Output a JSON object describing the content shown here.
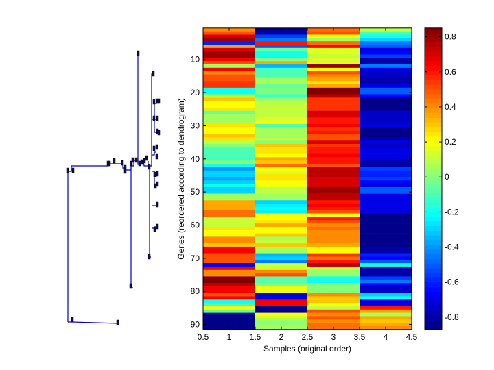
{
  "chart_data": {
    "type": "heatmap",
    "title": "",
    "xlabel": "Samples (original order)",
    "ylabel": "Genes (reordered according to dendrogram)",
    "colormap": "jet",
    "x": [
      1,
      2,
      3,
      4
    ],
    "xlim": [
      0.5,
      4.5
    ],
    "ylim": [
      0.5,
      91.5
    ],
    "y_reversed": true,
    "xticks": [
      "0.5",
      "1",
      "1.5",
      "2",
      "2.5",
      "3",
      "3.5",
      "4",
      "4.5"
    ],
    "yticks": [
      "10",
      "20",
      "30",
      "40",
      "50",
      "60",
      "70",
      "80",
      "90"
    ],
    "colorbar": {
      "range": [
        -0.87,
        0.85
      ],
      "ticks": [
        "0.8",
        "0.6",
        "0.4",
        "0.2",
        "0",
        "-0.2",
        "-0.4",
        "-0.6",
        "-0.8"
      ],
      "placement": "right"
    },
    "dendrogram": {
      "placement": "left",
      "leaves": 91
    },
    "values": [
      [
        0.4,
        -0.85,
        0.45,
        0.1
      ],
      [
        0.5,
        -0.8,
        0.5,
        -0.1
      ],
      [
        0.7,
        -0.55,
        0.2,
        -0.2
      ],
      [
        0.8,
        -0.45,
        0.05,
        -0.3
      ],
      [
        -0.6,
        0.6,
        0.45,
        -0.45
      ],
      [
        0.35,
        -0.5,
        0.65,
        -0.5
      ],
      [
        0.7,
        -0.05,
        0.15,
        -0.7
      ],
      [
        0.8,
        -0.2,
        0.15,
        -0.65
      ],
      [
        0.8,
        -0.2,
        0.1,
        -0.55
      ],
      [
        0.65,
        0.0,
        0.15,
        -0.8
      ],
      [
        0.5,
        0.35,
        0.15,
        -0.8
      ],
      [
        0.05,
        -0.35,
        0.8,
        -0.45
      ],
      [
        0.65,
        -0.1,
        0.2,
        -0.7
      ],
      [
        0.4,
        -0.1,
        0.5,
        -0.75
      ],
      [
        0.5,
        -0.1,
        0.4,
        -0.75
      ],
      [
        0.5,
        0.05,
        0.35,
        -0.8
      ],
      [
        0.55,
        0.05,
        0.25,
        -0.8
      ],
      [
        0.55,
        -0.05,
        0.35,
        -0.7
      ],
      [
        -0.2,
        -0.02,
        0.85,
        -0.5
      ],
      [
        -0.2,
        -0.02,
        0.85,
        -0.5
      ],
      [
        0.1,
        -0.12,
        0.75,
        -0.65
      ],
      [
        0.3,
        0.02,
        0.55,
        -0.85
      ],
      [
        0.2,
        0.1,
        0.55,
        -0.85
      ],
      [
        0.2,
        0.1,
        0.55,
        -0.85
      ],
      [
        0.25,
        0.1,
        0.55,
        -0.85
      ],
      [
        -0.05,
        0.1,
        0.7,
        -0.75
      ],
      [
        0.05,
        0.1,
        0.7,
        -0.75
      ],
      [
        0.05,
        0.15,
        0.6,
        -0.75
      ],
      [
        0.05,
        0.18,
        0.6,
        -0.75
      ],
      [
        0.25,
        -0.1,
        0.65,
        -0.7
      ],
      [
        0.2,
        0.05,
        0.55,
        -0.85
      ],
      [
        0.2,
        0.05,
        0.6,
        -0.85
      ],
      [
        0.3,
        0.05,
        0.5,
        -0.85
      ],
      [
        0.25,
        0.1,
        0.5,
        -0.8
      ],
      [
        0.1,
        0.0,
        0.7,
        -0.7
      ],
      [
        0.0,
        0.3,
        0.55,
        -0.75
      ],
      [
        -0.1,
        0.25,
        0.6,
        -0.7
      ],
      [
        -0.1,
        0.25,
        0.6,
        -0.7
      ],
      [
        -0.1,
        0.2,
        0.65,
        -0.7
      ],
      [
        -0.12,
        0.35,
        0.6,
        -0.7
      ],
      [
        0.0,
        0.3,
        0.6,
        -0.8
      ],
      [
        -0.2,
        0.45,
        0.5,
        -0.8
      ],
      [
        -0.4,
        0.2,
        0.75,
        -0.55
      ],
      [
        -0.3,
        0.15,
        0.75,
        -0.6
      ],
      [
        -0.3,
        0.25,
        0.75,
        -0.6
      ],
      [
        -0.38,
        0.25,
        0.7,
        -0.55
      ],
      [
        -0.3,
        0.2,
        0.7,
        -0.65
      ],
      [
        -0.2,
        0.2,
        0.7,
        -0.7
      ],
      [
        -0.3,
        0.08,
        0.8,
        -0.5
      ],
      [
        -0.3,
        0.1,
        0.8,
        -0.5
      ],
      [
        0.05,
        0.05,
        0.75,
        -0.7
      ],
      [
        0.05,
        0.05,
        0.75,
        -0.7
      ],
      [
        0.35,
        -0.3,
        0.6,
        -0.7
      ],
      [
        0.35,
        -0.25,
        0.65,
        -0.7
      ],
      [
        0.35,
        -0.2,
        0.6,
        -0.7
      ],
      [
        0.45,
        -0.25,
        0.5,
        -0.7
      ],
      [
        0.45,
        0.2,
        0.2,
        -0.85
      ],
      [
        0.1,
        0.2,
        0.6,
        -0.85
      ],
      [
        0.12,
        0.25,
        0.5,
        -0.85
      ],
      [
        0.1,
        0.35,
        0.4,
        -0.85
      ],
      [
        0.25,
        0.2,
        0.45,
        -0.85
      ],
      [
        0.2,
        0.2,
        0.4,
        -0.85
      ],
      [
        0.2,
        0.3,
        0.4,
        -0.85
      ],
      [
        0.4,
        0.05,
        0.4,
        -0.85
      ],
      [
        0.4,
        0.1,
        0.4,
        -0.85
      ],
      [
        0.3,
        0.3,
        0.35,
        -0.85
      ],
      [
        0.65,
        0.05,
        0.2,
        -0.8
      ],
      [
        0.65,
        0.05,
        0.2,
        -0.8
      ],
      [
        0.5,
        -0.35,
        0.55,
        -0.6
      ],
      [
        0.5,
        -0.3,
        0.45,
        -0.65
      ],
      [
        0.5,
        -0.45,
        0.6,
        -0.5
      ],
      [
        -0.65,
        0.12,
        0.75,
        -0.2
      ],
      [
        0.65,
        0.12,
        0.1,
        -0.8
      ],
      [
        0.4,
        0.4,
        0.03,
        -0.8
      ],
      [
        0.4,
        0.5,
        0.03,
        -0.8
      ],
      [
        0.85,
        -0.08,
        -0.2,
        -0.55
      ],
      [
        0.85,
        -0.08,
        -0.2,
        -0.45
      ],
      [
        0.75,
        0.0,
        0.0,
        -0.65
      ],
      [
        0.65,
        0.18,
        0.0,
        -0.75
      ],
      [
        0.65,
        0.18,
        0.0,
        -0.75
      ],
      [
        0.5,
        -0.7,
        0.4,
        -0.3
      ],
      [
        0.65,
        -0.7,
        0.3,
        -0.2
      ],
      [
        -0.2,
        0.65,
        0.3,
        -0.7
      ],
      [
        -0.1,
        0.65,
        0.2,
        -0.7
      ],
      [
        0.2,
        -0.85,
        0.1,
        0.6
      ],
      [
        -0.08,
        -0.85,
        0.5,
        0.35
      ],
      [
        -0.85,
        0.2,
        0.4,
        0.05
      ],
      [
        -0.85,
        0.1,
        0.5,
        0.35
      ],
      [
        -0.85,
        0.02,
        0.4,
        0.3
      ],
      [
        -0.85,
        0.02,
        0.45,
        0.35
      ],
      [
        -0.85,
        0.05,
        0.45,
        0.4
      ]
    ]
  }
}
